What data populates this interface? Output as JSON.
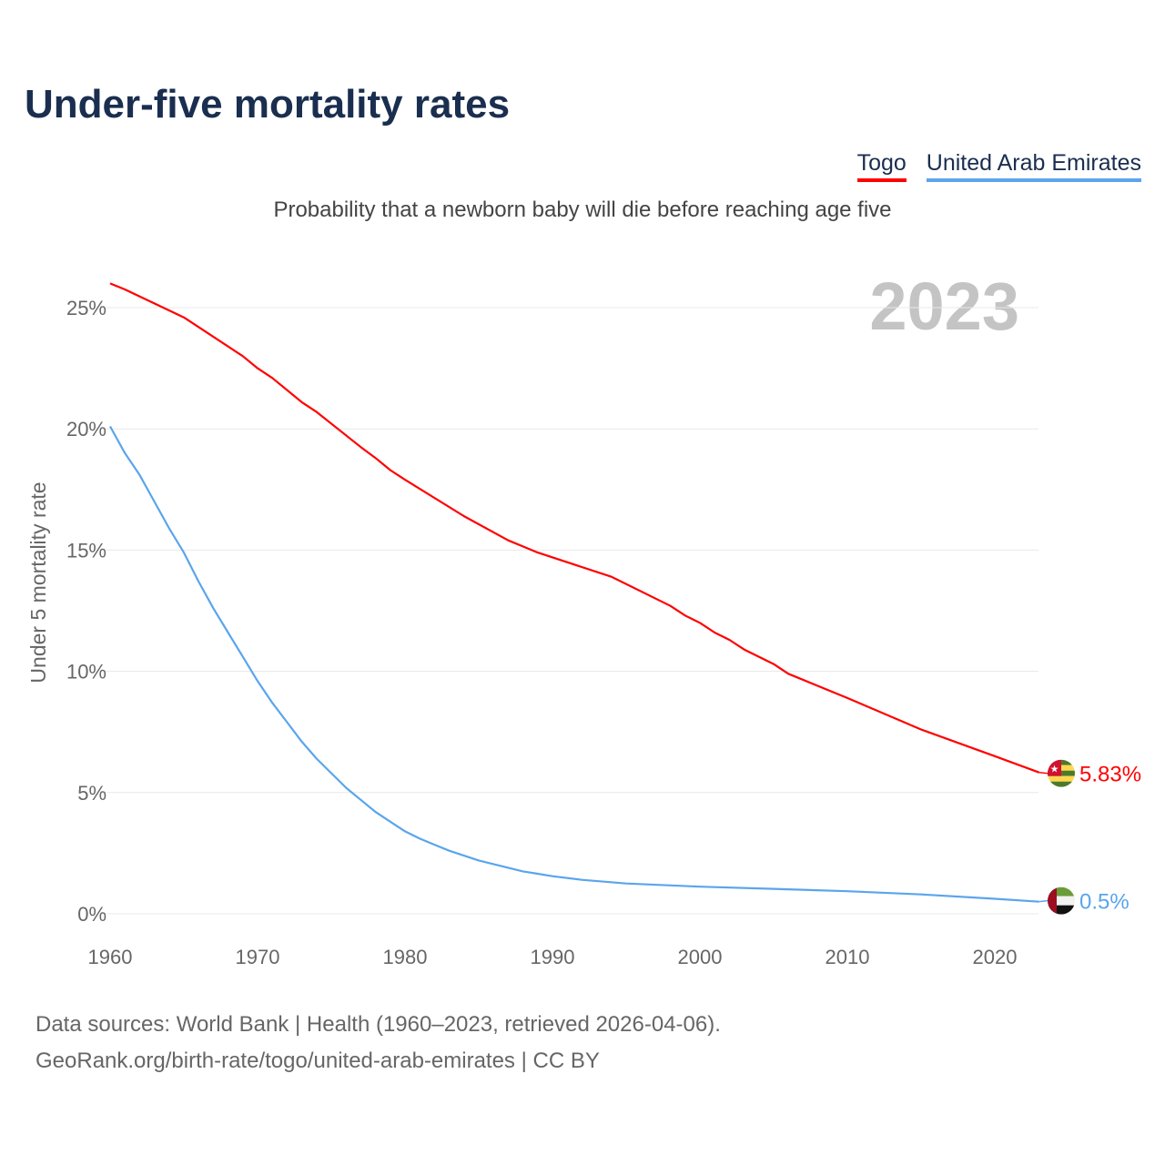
{
  "title": "Under-five mortality rates",
  "subtitle": "Probability that a newborn baby will die before reaching age five",
  "year_label": "2023",
  "footer": {
    "line1": "Data sources: World Bank | Health (1960–2023, retrieved 2026-04-06).",
    "line2": "GeoRank.org/birth-rate/togo/united-arab-emirates | CC BY"
  },
  "chart_data": {
    "type": "line",
    "title": "Under-five mortality rates",
    "ylabel": "Under 5 mortality rate",
    "xlabel": "",
    "xlim": [
      1960,
      2023
    ],
    "ylim": [
      0,
      26
    ],
    "x_ticks": [
      1960,
      1970,
      1980,
      1990,
      2000,
      2010,
      2020
    ],
    "y_ticks": [
      0,
      5,
      10,
      15,
      20,
      25
    ],
    "y_tick_labels": [
      "0%",
      "5%",
      "10%",
      "15%",
      "20%",
      "25%"
    ],
    "grid": true,
    "legend_position": "top-right",
    "series": [
      {
        "name": "Togo",
        "color": "#ff0000",
        "end_label": "5.83%",
        "flag": "togo-flag",
        "x": [
          1960,
          1961,
          1965,
          1969,
          1970,
          1971,
          1973,
          1974,
          1977,
          1978,
          1979,
          1980,
          1984,
          1987,
          1988,
          1989,
          1994,
          1998,
          1999,
          2000,
          2001,
          2002,
          2003,
          2005,
          2006,
          2010,
          2015,
          2020,
          2023
        ],
        "y": [
          26.0,
          25.75,
          24.6,
          23.0,
          22.5,
          22.1,
          21.1,
          20.7,
          19.25,
          18.8,
          18.3,
          17.9,
          16.4,
          15.4,
          15.15,
          14.9,
          13.9,
          12.7,
          12.3,
          12.0,
          11.6,
          11.3,
          10.9,
          10.3,
          9.9,
          8.9,
          7.6,
          6.5,
          5.83
        ]
      },
      {
        "name": "United Arab Emirates",
        "color": "#5aa5ec",
        "end_label": "0.5%",
        "flag": "uae-flag",
        "x": [
          1960,
          1961,
          1962,
          1963,
          1964,
          1965,
          1966,
          1967,
          1968,
          1969,
          1970,
          1971,
          1972,
          1973,
          1974,
          1975,
          1976,
          1977,
          1978,
          1979,
          1980,
          1981,
          1982,
          1983,
          1984,
          1985,
          1986,
          1987,
          1988,
          1989,
          1990,
          1992,
          1995,
          2000,
          2005,
          2010,
          2015,
          2020,
          2023
        ],
        "y": [
          20.1,
          19.0,
          18.1,
          17.0,
          15.9,
          14.9,
          13.7,
          12.6,
          11.6,
          10.6,
          9.6,
          8.7,
          7.9,
          7.1,
          6.4,
          5.8,
          5.2,
          4.7,
          4.2,
          3.8,
          3.4,
          3.1,
          2.85,
          2.6,
          2.4,
          2.2,
          2.05,
          1.9,
          1.75,
          1.65,
          1.55,
          1.4,
          1.25,
          1.12,
          1.03,
          0.93,
          0.8,
          0.62,
          0.5
        ]
      }
    ]
  }
}
